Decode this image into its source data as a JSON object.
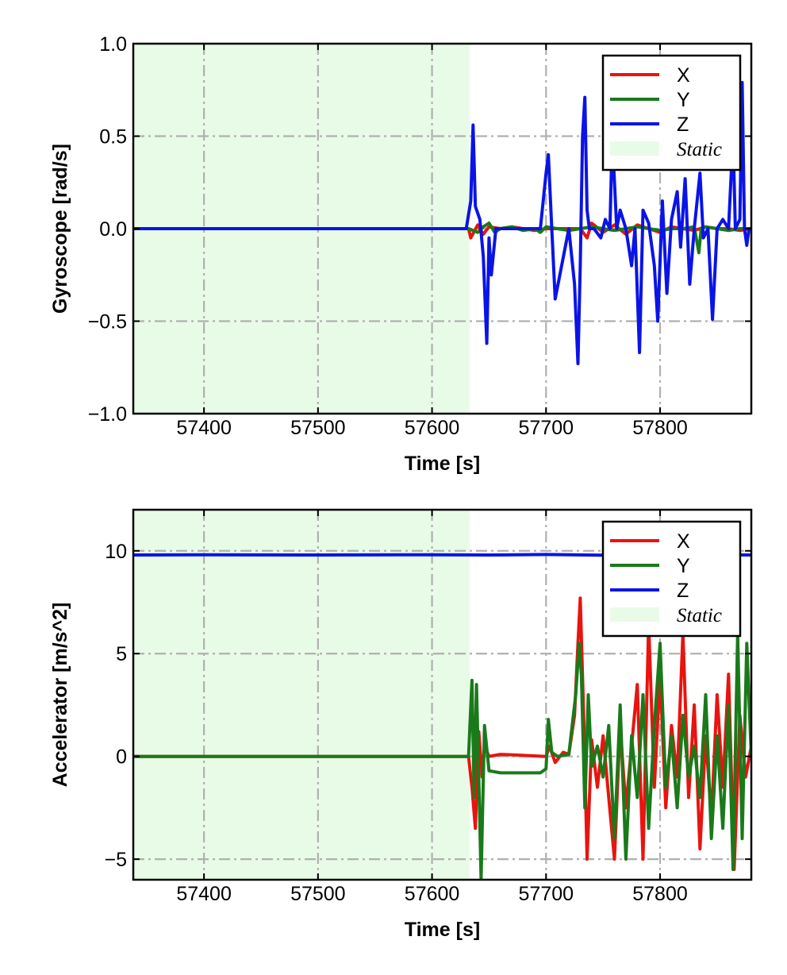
{
  "chart_data": [
    {
      "type": "line",
      "xlabel": "Time [s]",
      "ylabel": "Gyroscope [rad/s]",
      "xlim": [
        57338,
        57880
      ],
      "ylim": [
        -1.0,
        1.0
      ],
      "x_ticks": [
        57400,
        57500,
        57600,
        57700,
        57800
      ],
      "y_ticks": [
        -1.0,
        -0.5,
        0.0,
        0.5,
        1.0
      ],
      "y_tick_labels": [
        "−1.0",
        "−0.5",
        "0.0",
        "0.5",
        "1.0"
      ],
      "grid": true,
      "legend_position": "top-right",
      "static_region": [
        57338,
        57633
      ],
      "legend": {
        "entries": [
          "X",
          "Y",
          "Z"
        ],
        "static_label": "Static"
      },
      "series": [
        {
          "name": "X",
          "color": "#e8140f",
          "x": [
            57338,
            57632,
            57634,
            57640,
            57645,
            57650,
            57660,
            57670,
            57680,
            57690,
            57700,
            57705,
            57715,
            57725,
            57730,
            57736,
            57740,
            57750,
            57760,
            57770,
            57780,
            57790,
            57800,
            57810,
            57820,
            57830,
            57840,
            57850,
            57860,
            57870,
            57880
          ],
          "y": [
            0.0,
            0.0,
            -0.05,
            0.02,
            -0.03,
            0.01,
            0.0,
            0.01,
            0.0,
            -0.01,
            0.0,
            0.0,
            0.0,
            0.0,
            0.0,
            -0.05,
            0.03,
            -0.02,
            0.02,
            -0.03,
            0.02,
            0.0,
            -0.02,
            0.01,
            0.0,
            -0.01,
            0.01,
            0.0,
            0.0,
            -0.01,
            0.0
          ]
        },
        {
          "name": "Y",
          "color": "#1a7a1a",
          "x": [
            57338,
            57632,
            57640,
            57645,
            57650,
            57655,
            57660,
            57670,
            57680,
            57690,
            57695,
            57700,
            57710,
            57720,
            57730,
            57740,
            57750,
            57760,
            57770,
            57780,
            57790,
            57800,
            57810,
            57820,
            57830,
            57834,
            57836,
            57840,
            57850,
            57860,
            57870,
            57880
          ],
          "y": [
            0.0,
            0.0,
            -0.02,
            0.01,
            0.03,
            -0.02,
            0.0,
            0.01,
            -0.01,
            0.0,
            -0.02,
            0.01,
            0.0,
            -0.01,
            0.0,
            0.01,
            0.0,
            -0.01,
            0.0,
            0.01,
            0.0,
            -0.01,
            0.0,
            0.0,
            0.01,
            -0.13,
            0.0,
            0.01,
            0.0,
            -0.01,
            0.0,
            0.0
          ]
        },
        {
          "name": "Z",
          "color": "#0a14e6",
          "x": [
            57338,
            57630,
            57634,
            57636,
            57638,
            57642,
            57645,
            57648,
            57650,
            57652,
            57656,
            57660,
            57680,
            57695,
            57700,
            57702,
            57705,
            57708,
            57720,
            57725,
            57728,
            57730,
            57732,
            57734,
            57736,
            57738,
            57742,
            57748,
            57752,
            57756,
            57758,
            57762,
            57765,
            57770,
            57775,
            57778,
            57782,
            57785,
            57790,
            57795,
            57798,
            57802,
            57806,
            57810,
            57815,
            57818,
            57822,
            57826,
            57830,
            57835,
            57838,
            57842,
            57846,
            57850,
            57855,
            57860,
            57864,
            57866,
            57870,
            57872,
            57874,
            57876,
            57878,
            57880
          ],
          "y": [
            0.0,
            0.0,
            0.15,
            0.56,
            0.12,
            0.05,
            -0.15,
            -0.62,
            -0.05,
            -0.25,
            0.0,
            0.0,
            0.0,
            0.0,
            0.3,
            0.4,
            0.0,
            -0.38,
            0.0,
            -0.3,
            -0.73,
            -0.2,
            0.5,
            0.71,
            0.1,
            0.0,
            0.0,
            -0.05,
            0.05,
            0.0,
            0.5,
            0.0,
            0.1,
            0.0,
            -0.2,
            0.0,
            -0.67,
            0.1,
            0.03,
            -0.2,
            -0.5,
            0.15,
            -0.35,
            0.05,
            0.2,
            -0.1,
            0.27,
            -0.3,
            0.0,
            0.3,
            -0.05,
            0.0,
            -0.49,
            0.0,
            0.05,
            0.0,
            0.5,
            0.0,
            0.05,
            0.79,
            0.0,
            -0.09,
            0.0,
            0.0
          ]
        }
      ]
    },
    {
      "type": "line",
      "xlabel": "Time [s]",
      "ylabel": "Accelerator [m/s^2]",
      "xlim": [
        57338,
        57880
      ],
      "ylim": [
        -6,
        12
      ],
      "x_ticks": [
        57400,
        57500,
        57600,
        57700,
        57800
      ],
      "y_ticks": [
        -5,
        0,
        5,
        10
      ],
      "y_tick_labels": [
        "−5",
        "0",
        "5",
        "10"
      ],
      "grid": true,
      "legend_position": "top-right",
      "static_region": [
        57338,
        57633
      ],
      "legend": {
        "entries": [
          "X",
          "Y",
          "Z"
        ],
        "static_label": "Static"
      },
      "series": [
        {
          "name": "X",
          "color": "#e8140f",
          "x": [
            57338,
            57632,
            57635,
            57638,
            57641,
            57644,
            57646,
            57650,
            57660,
            57680,
            57700,
            57703,
            57708,
            57715,
            57720,
            57725,
            57728,
            57730,
            57733,
            57736,
            57740,
            57745,
            57750,
            57755,
            57760,
            57765,
            57770,
            57775,
            57780,
            57785,
            57790,
            57795,
            57800,
            57805,
            57810,
            57815,
            57820,
            57825,
            57830,
            57835,
            57840,
            57845,
            57850,
            57855,
            57860,
            57865,
            57870,
            57875,
            57880
          ],
          "y": [
            0.0,
            0.0,
            -1.5,
            -3.5,
            1.2,
            -1.0,
            0.5,
            0.0,
            0.1,
            0.05,
            0.0,
            0.5,
            -0.3,
            0.2,
            0.1,
            2.0,
            5.5,
            7.7,
            2.0,
            -5.0,
            0.8,
            -1.5,
            1.0,
            -2.0,
            -5.0,
            1.5,
            -2.5,
            0.5,
            3.5,
            -5.0,
            6.5,
            -1.5,
            4.0,
            -2.5,
            1.5,
            -1.0,
            6.0,
            -2.0,
            2.5,
            -4.5,
            1.0,
            -3.0,
            3.0,
            -1.5,
            4.0,
            -5.5,
            2.0,
            -1.0,
            0.5
          ]
        },
        {
          "name": "Y",
          "color": "#1a7a1a",
          "x": [
            57338,
            57632,
            57635,
            57637,
            57639,
            57641,
            57643,
            57646,
            57650,
            57660,
            57680,
            57695,
            57700,
            57702,
            57705,
            57710,
            57720,
            57726,
            57729,
            57731,
            57734,
            57737,
            57740,
            57745,
            57750,
            57755,
            57760,
            57765,
            57770,
            57775,
            57780,
            57785,
            57790,
            57795,
            57800,
            57805,
            57810,
            57815,
            57820,
            57825,
            57830,
            57835,
            57840,
            57845,
            57850,
            57855,
            57860,
            57864,
            57868,
            57872,
            57876,
            57880
          ],
          "y": [
            0.0,
            0.0,
            3.7,
            -2.0,
            3.5,
            -1.0,
            -6.0,
            1.5,
            -0.7,
            -0.8,
            -0.8,
            -0.8,
            -0.6,
            1.8,
            0.2,
            0.0,
            0.1,
            3.0,
            5.5,
            4.0,
            -2.5,
            3.0,
            -0.5,
            0.5,
            -1.0,
            1.5,
            -4.0,
            2.5,
            -5.0,
            1.0,
            -2.0,
            3.0,
            -3.5,
            1.5,
            5.5,
            -1.5,
            1.0,
            -2.5,
            2.0,
            -1.0,
            0.5,
            -2.0,
            3.0,
            -4.0,
            1.0,
            -3.5,
            2.5,
            -5.5,
            6.0,
            -4.0,
            5.5,
            0.0
          ]
        },
        {
          "name": "Z",
          "color": "#0a14e6",
          "x": [
            57338,
            57400,
            57500,
            57600,
            57650,
            57700,
            57750,
            57800,
            57850,
            57880
          ],
          "y": [
            9.8,
            9.81,
            9.8,
            9.81,
            9.8,
            9.82,
            9.79,
            9.8,
            9.81,
            9.8
          ]
        }
      ]
    }
  ]
}
